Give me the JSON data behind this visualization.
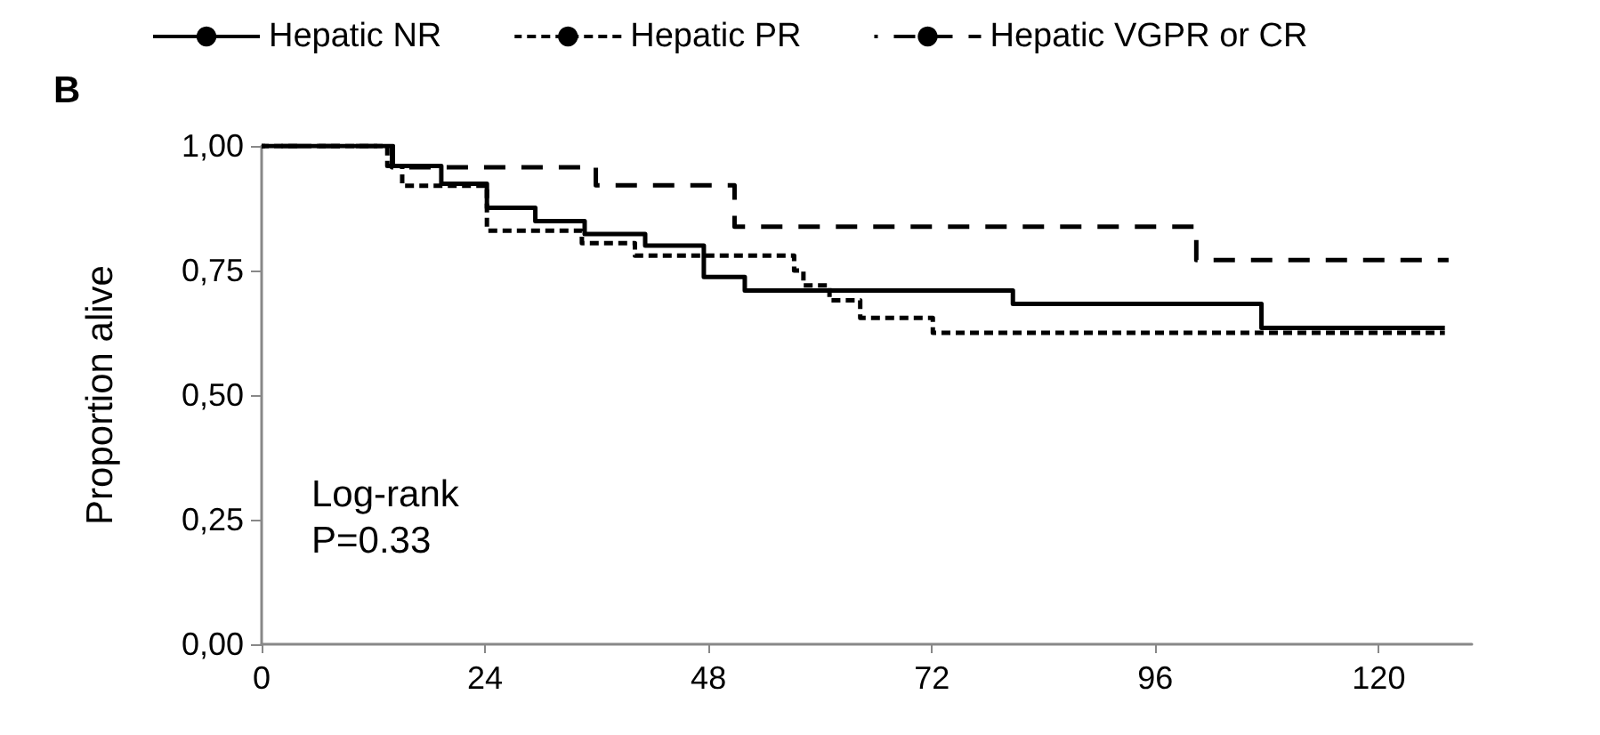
{
  "chart_data": {
    "type": "step",
    "xlabel": null,
    "ylabel": "Proportion alive",
    "annotations": [
      "B",
      "Log-rank\nP=0.33"
    ],
    "legend": "top",
    "grid": false,
    "xlim": [
      0,
      130
    ],
    "xticks": [
      0,
      24,
      48,
      72,
      96,
      120
    ],
    "ylim": [
      0,
      1
    ],
    "yticks": [
      {
        "value": 0,
        "label": "0,00"
      },
      {
        "value": 0.25,
        "label": "0,25"
      },
      {
        "value": 0.5,
        "label": "0,50"
      },
      {
        "value": 0.75,
        "label": "0,75"
      },
      {
        "value": 1,
        "label": "1,00"
      }
    ],
    "series": [
      {
        "name": "Hepatic NR",
        "color": "#000000",
        "line_style": "solid",
        "x": [
          0,
          14.1,
          19.3,
          24.2,
          29.4,
          34.7,
          41.2,
          47.5,
          51.9,
          80.7,
          107.4,
          127.1
        ],
        "values": [
          1,
          0.96,
          0.924,
          0.876,
          0.849,
          0.823,
          0.8,
          0.737,
          0.71,
          0.683,
          0.635,
          0.635
        ]
      },
      {
        "name": "Hepatic PR",
        "color": "#000000",
        "line_style": "dotted",
        "x": [
          0,
          13.5,
          15.1,
          24.2,
          34.4,
          40.1,
          57.2,
          58.2,
          61,
          64.3,
          72.1,
          127.1
        ],
        "values": [
          1,
          0.96,
          0.92,
          0.83,
          0.805,
          0.78,
          0.75,
          0.72,
          0.69,
          0.655,
          0.625,
          0.625
        ]
      },
      {
        "name": "Hepatic VGPR or CR",
        "color": "#000000",
        "line_style": "dashed",
        "x": [
          0,
          14,
          35.9,
          50.8,
          100.4,
          127.5
        ],
        "values": [
          1,
          0.957,
          0.921,
          0.838,
          0.771,
          0.771
        ]
      }
    ]
  }
}
